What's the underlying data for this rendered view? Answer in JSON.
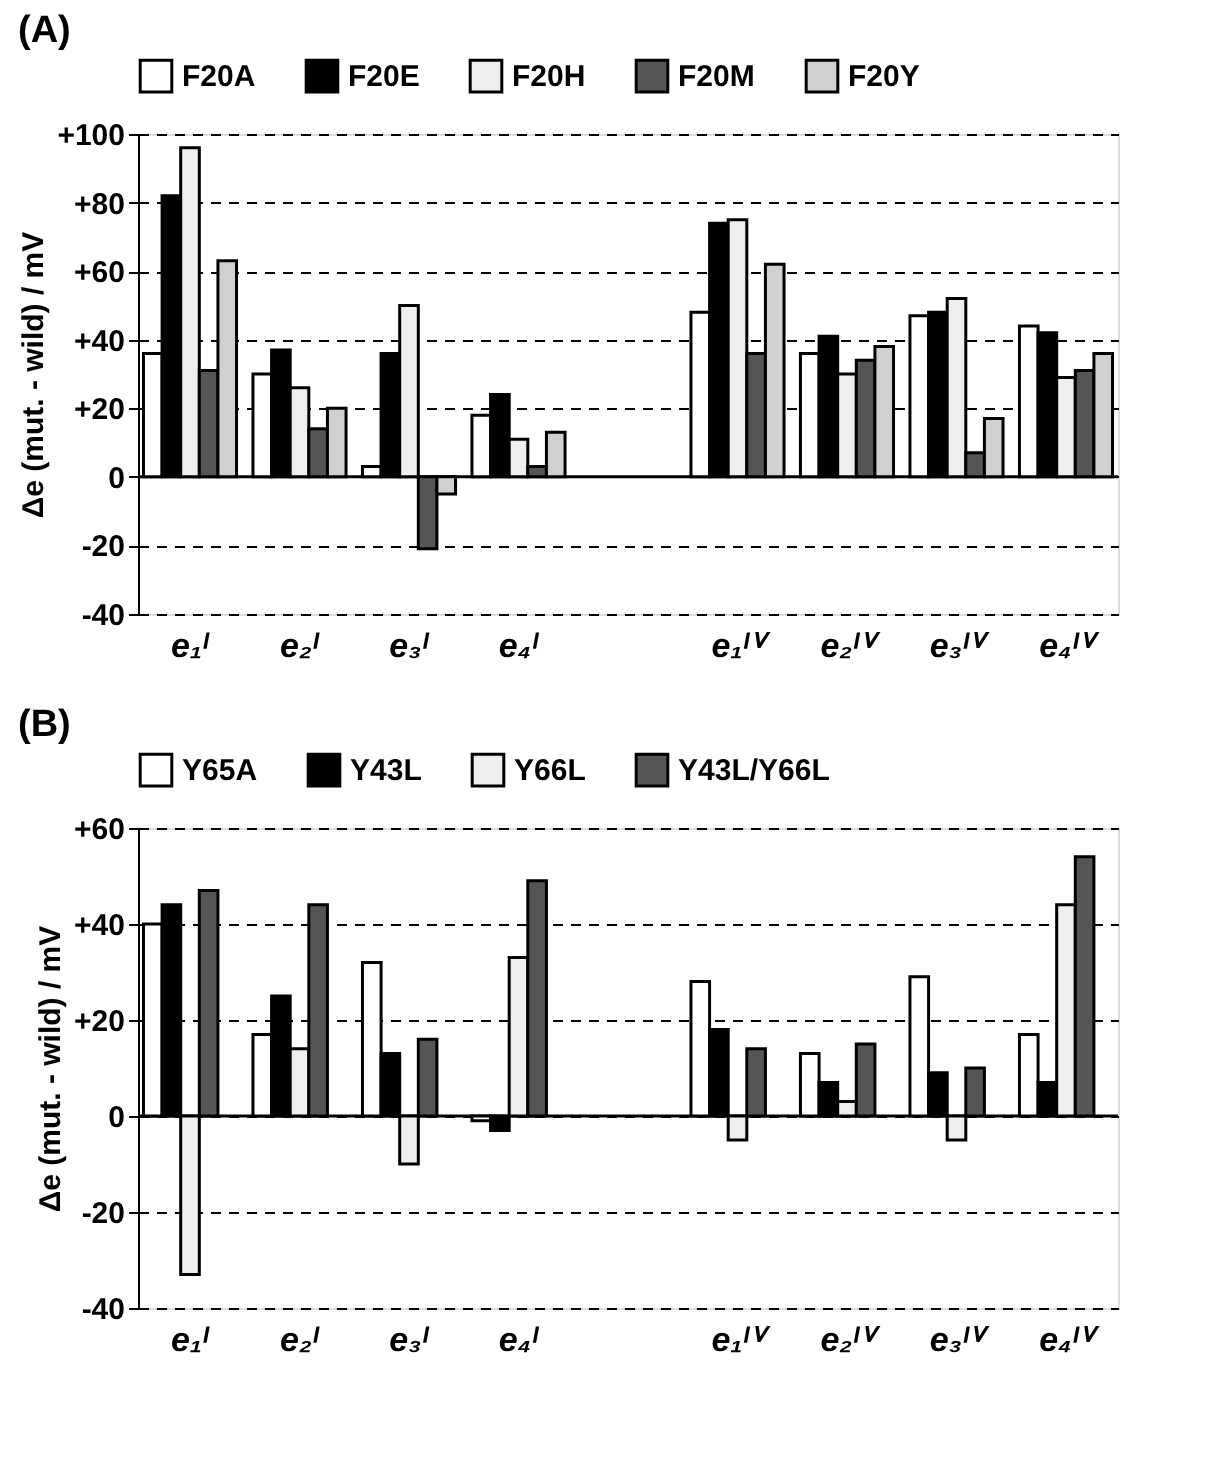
{
  "chart_data": [
    {
      "type": "bar",
      "title": "(A)",
      "ylabel": "Δe (mut. - wild) / mV",
      "categories": [
        "e₁ᴵ",
        "e₂ᴵ",
        "e₃ᴵ",
        "e₄ᴵ",
        null,
        "e₁ᴵⱽ",
        "e₂ᴵⱽ",
        "e₃ᴵⱽ",
        "e₄ᴵⱽ"
      ],
      "series": [
        {
          "name": "F20A",
          "color": "#ffffff",
          "values": [
            36,
            30,
            3,
            18,
            null,
            48,
            36,
            47,
            44
          ]
        },
        {
          "name": "F20E",
          "color": "#000000",
          "values": [
            82,
            37,
            36,
            24,
            null,
            74,
            41,
            48,
            42
          ]
        },
        {
          "name": "F20H",
          "color": "#eeeeee",
          "values": [
            96,
            26,
            50,
            11,
            null,
            75,
            30,
            52,
            29
          ]
        },
        {
          "name": "F20M",
          "color": "#555555",
          "values": [
            31,
            14,
            -21,
            3,
            null,
            36,
            34,
            7,
            31
          ]
        },
        {
          "name": "F20Y",
          "color": "#d0d0d0",
          "values": [
            63,
            20,
            -5,
            13,
            null,
            62,
            38,
            17,
            36
          ]
        }
      ],
      "ylim": [
        -40,
        100
      ],
      "yticks": [
        {
          "value": -40,
          "label": "-40"
        },
        {
          "value": -20,
          "label": "-20"
        },
        0,
        {
          "value": 20,
          "label": "+20"
        },
        {
          "value": 40,
          "label": "+40"
        },
        {
          "value": 60,
          "label": "+60"
        },
        {
          "value": 80,
          "label": "+80"
        },
        {
          "value": 100,
          "label": "+100"
        }
      ],
      "ref_lines": [
        {
          "axis": "y",
          "value": 0,
          "color": "#000000"
        }
      ],
      "grid": "y",
      "legend": "top"
    },
    {
      "type": "bar",
      "title": "(B)",
      "ylabel": "Δe (mut. - wild) / mV",
      "categories": [
        "e₁ᴵ",
        "e₂ᴵ",
        "e₃ᴵ",
        "e₄ᴵ",
        null,
        "e₁ᴵⱽ",
        "e₂ᴵⱽ",
        "e₃ᴵⱽ",
        "e₄ᴵⱽ"
      ],
      "series": [
        {
          "name": "Y65A",
          "color": "#ffffff",
          "values": [
            40,
            17,
            32,
            -1,
            null,
            28,
            13,
            29,
            17
          ]
        },
        {
          "name": "Y43L",
          "color": "#000000",
          "values": [
            44,
            25,
            13,
            -3,
            null,
            18,
            7,
            9,
            7
          ]
        },
        {
          "name": "Y66L",
          "color": "#eeeeee",
          "values": [
            -33,
            14,
            -10,
            33,
            null,
            -5,
            3,
            -5,
            44
          ]
        },
        {
          "name": "Y43L/Y66L",
          "color": "#555555",
          "values": [
            47,
            44,
            16,
            49,
            null,
            14,
            15,
            10,
            54
          ]
        }
      ],
      "ylim": [
        -40,
        60
      ],
      "yticks": [
        {
          "value": -40,
          "label": "-40"
        },
        {
          "value": -20,
          "label": "-20"
        },
        0,
        {
          "value": 20,
          "label": "+20"
        },
        {
          "value": 40,
          "label": "+40"
        },
        {
          "value": 60,
          "label": "+60"
        }
      ],
      "ref_lines": [
        {
          "axis": "y",
          "value": 0,
          "color": "#000000"
        }
      ],
      "grid": "y",
      "legend": "top"
    }
  ]
}
